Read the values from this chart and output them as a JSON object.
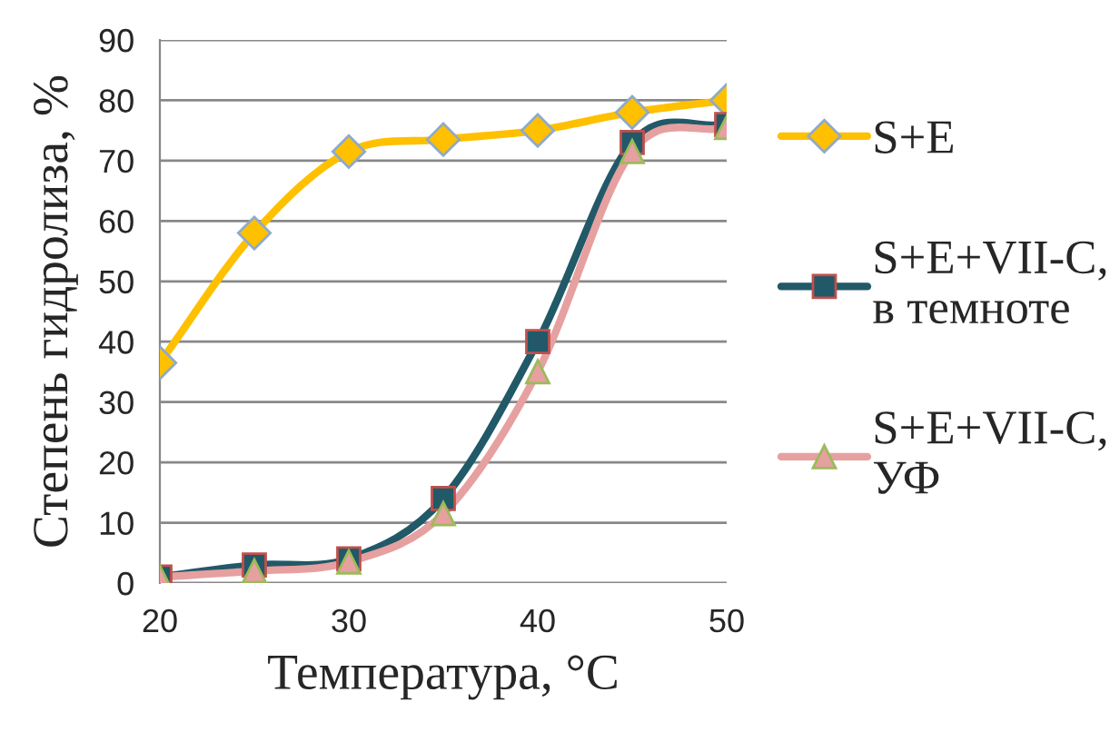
{
  "chart_data": {
    "type": "line",
    "xlabel": "Температура, °C",
    "ylabel": "Степень гидролиза, %",
    "x": [
      20,
      25,
      30,
      35,
      40,
      45,
      50
    ],
    "series": [
      {
        "name": "S+E",
        "color": "#ffc000",
        "marker": "diamond",
        "values": [
          36.5,
          58,
          71.5,
          73.5,
          75,
          78,
          80
        ]
      },
      {
        "name": "S+E+VII-C,\nв темноте",
        "color": "#215968",
        "marker": "square",
        "values": [
          1,
          3,
          4,
          14,
          40,
          73,
          76
        ]
      },
      {
        "name": "S+E+VII-C,\nУФ",
        "color": "#e6a0a0",
        "marker": "triangle",
        "values": [
          1,
          2,
          3.5,
          11.5,
          35,
          71.5,
          75.5
        ]
      }
    ],
    "xlim": [
      20,
      50
    ],
    "xticks": [
      20,
      30,
      40,
      50
    ],
    "ylim": [
      0,
      90
    ],
    "yticks": [
      0,
      10,
      20,
      30,
      40,
      50,
      60,
      70,
      80,
      90
    ],
    "grid": "y",
    "legend": "right"
  }
}
